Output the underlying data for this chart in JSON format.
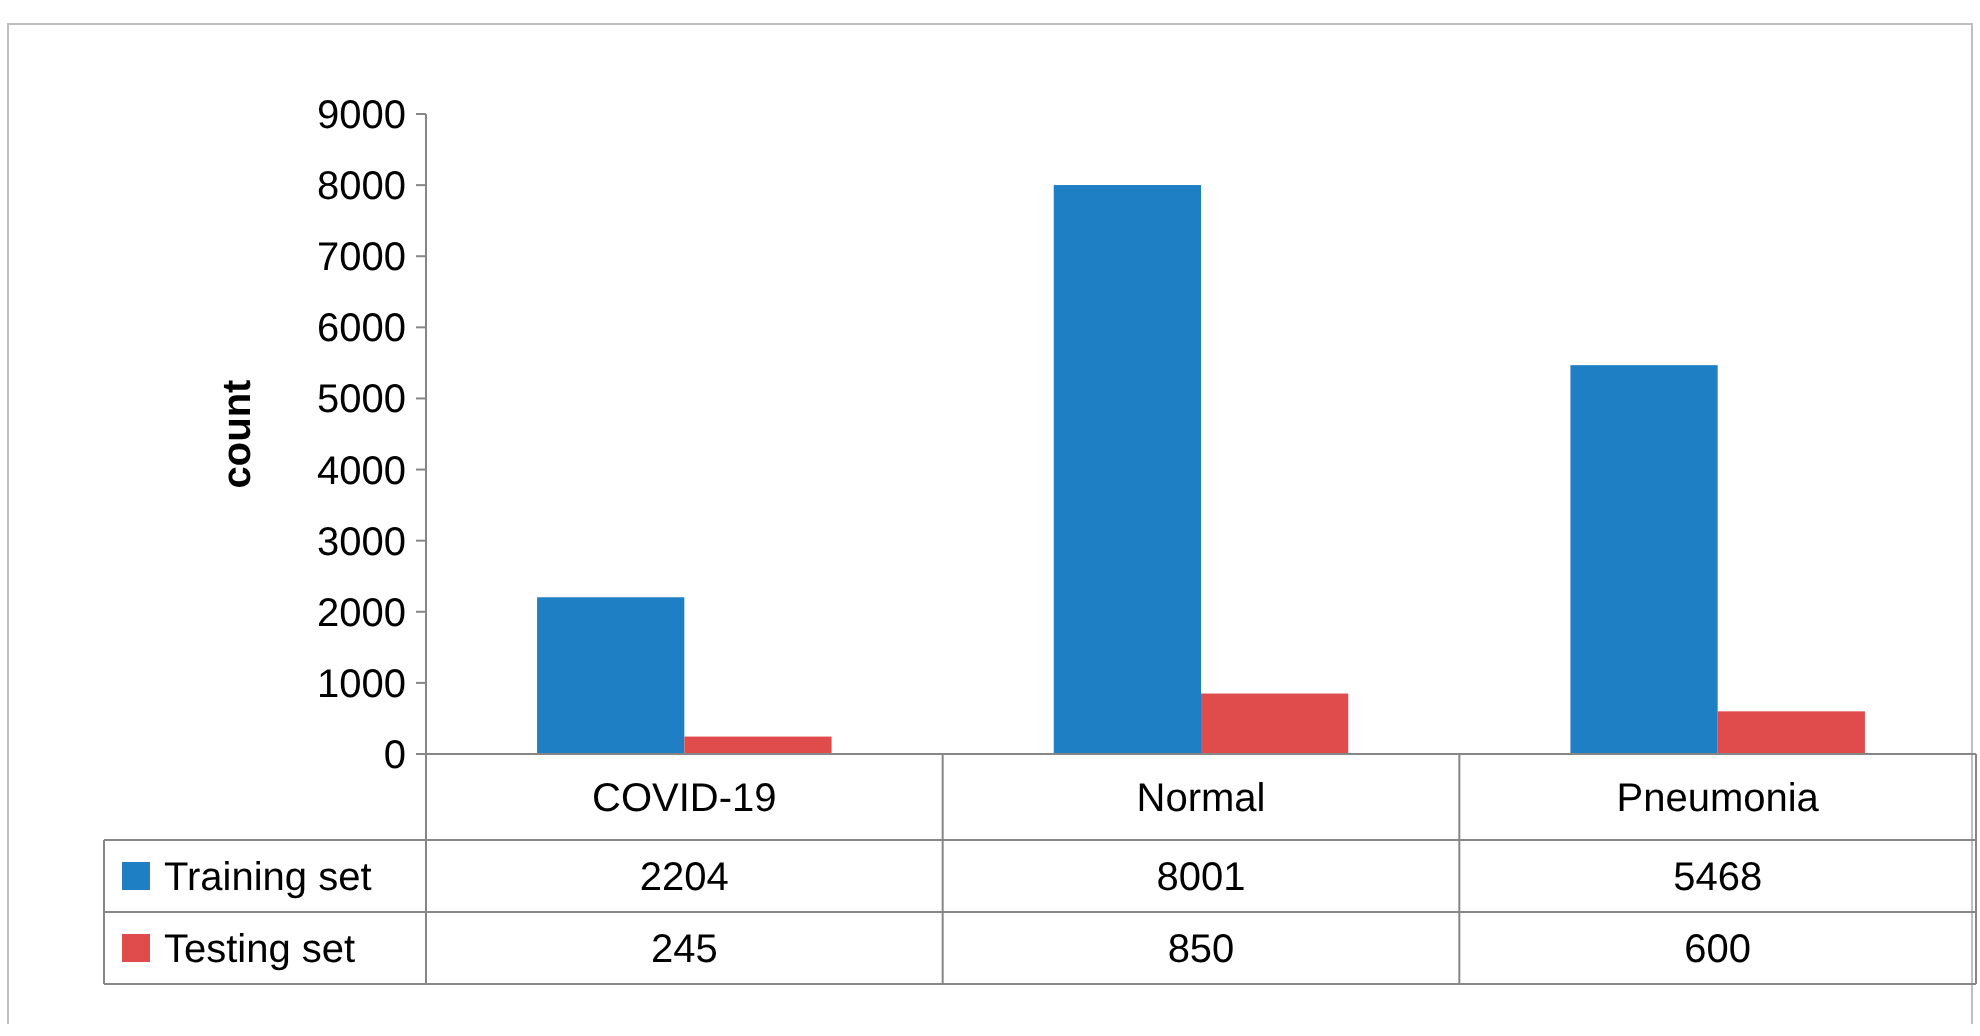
{
  "chart_data": {
    "type": "bar",
    "ylabel": "count",
    "categories": [
      "COVID-19",
      "Normal",
      "Pneumonia"
    ],
    "series": [
      {
        "name": "Training set",
        "color": "#1f7fc4",
        "values": [
          2204,
          8001,
          5468
        ]
      },
      {
        "name": "Testing set",
        "color": "#e04b4b",
        "values": [
          245,
          850,
          600
        ]
      }
    ],
    "ylim": [
      0,
      9000
    ],
    "yticks": [
      0,
      1000,
      2000,
      3000,
      4000,
      5000,
      6000,
      7000,
      8000,
      9000
    ],
    "data_labels": true,
    "legend": "bottom",
    "grid": false
  }
}
